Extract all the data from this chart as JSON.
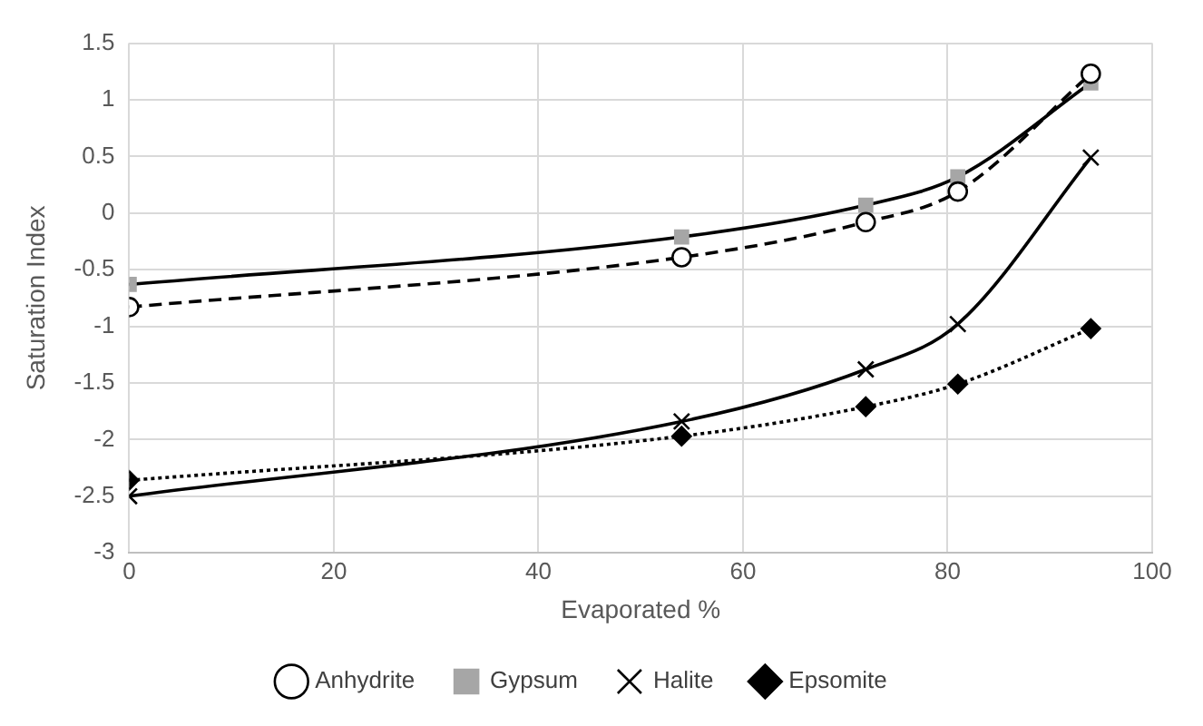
{
  "chart_data": {
    "type": "line",
    "xlabel": "Evaporated %",
    "ylabel": "Saturation Index",
    "x": [
      0,
      54,
      72,
      81,
      94
    ],
    "xlim": [
      0,
      100
    ],
    "xticks": [
      0,
      20,
      40,
      60,
      80,
      100
    ],
    "ylim": [
      -3,
      1.5
    ],
    "yticks": [
      -3,
      -2.5,
      -2,
      -1.5,
      -1,
      -0.5,
      0,
      0.5,
      1,
      1.5
    ],
    "grid": true,
    "legend": "bottom",
    "series": [
      {
        "name": "Anhydrite",
        "color": "#000000",
        "marker": "circle",
        "line_style": "dashed",
        "values": [
          -0.83,
          -0.39,
          -0.08,
          0.19,
          1.23
        ]
      },
      {
        "name": "Gypsum",
        "color": "#000000",
        "marker": "square",
        "line_style": "solid",
        "values": [
          -0.63,
          -0.21,
          0.07,
          0.32,
          1.15
        ]
      },
      {
        "name": "Halite",
        "color": "#000000",
        "marker": "cross",
        "line_style": "solid",
        "values": [
          -2.5,
          -1.84,
          -1.38,
          -0.98,
          0.49
        ]
      },
      {
        "name": "Epsomite",
        "color": "#000000",
        "marker": "diamond",
        "line_style": "dotted",
        "values": [
          -2.36,
          -1.97,
          -1.71,
          -1.51,
          -1.02
        ]
      }
    ]
  }
}
